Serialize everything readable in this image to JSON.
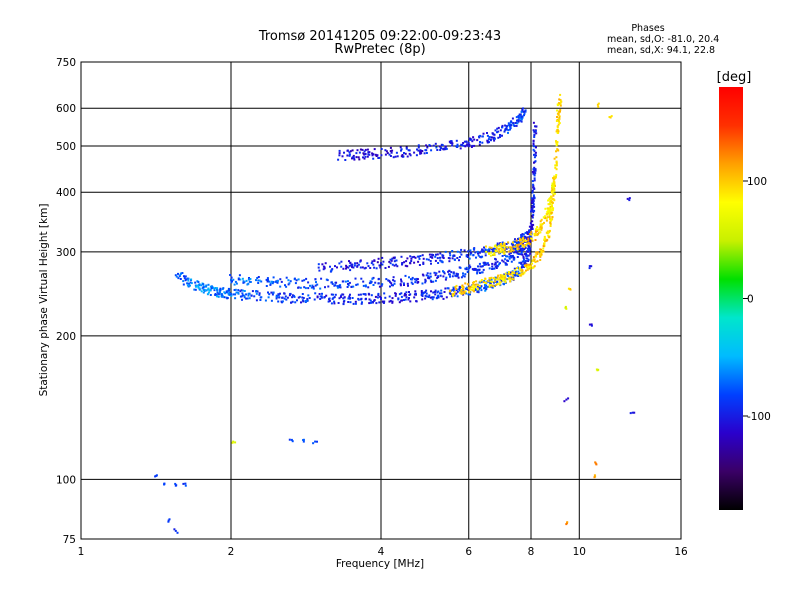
{
  "chart_data": {
    "type": "scatter",
    "title": "Tromsø 20141205 09:22:00-09:23:43",
    "subtitle": "RwPretec (8p)",
    "xlabel": "Frequency [MHz]",
    "ylabel": "Stationary phase Virtual Height [km]",
    "x_scale": "log",
    "y_scale": "log",
    "xlim": [
      1,
      16
    ],
    "ylim": [
      75,
      750
    ],
    "x_ticks": [
      1,
      2,
      4,
      6,
      8,
      10,
      16
    ],
    "y_ticks": [
      75,
      100,
      200,
      300,
      400,
      500,
      600,
      750
    ],
    "grid": true,
    "stats": {
      "header": "Phases",
      "line_o": "mean, sd,O: -81.0, 20.4",
      "line_x": "mean, sd,X:  94.1, 22.8"
    },
    "colorbar": {
      "label": "[deg]",
      "range": [
        -180,
        180
      ],
      "ticks": [
        100,
        0,
        -100
      ],
      "colors": [
        "#000000",
        "#3a0066",
        "#2a00cc",
        "#0040ff",
        "#00bbff",
        "#00e6cc",
        "#00e000",
        "#c8f000",
        "#ffff00",
        "#ffa000",
        "#ff3000",
        "#ff0000"
      ]
    },
    "series": [
      {
        "description": "lower trace",
        "points": [
          [
            1.55,
            268,
            -80
          ],
          [
            1.7,
            255,
            -70
          ],
          [
            1.8,
            250,
            -60
          ],
          [
            1.9,
            247,
            -70
          ],
          [
            2.0,
            245,
            -75
          ],
          [
            2.2,
            243,
            -80
          ],
          [
            2.5,
            241,
            -85
          ],
          [
            2.8,
            240,
            -90
          ],
          [
            3.2,
            239,
            -95
          ],
          [
            3.6,
            239,
            -95
          ],
          [
            4.0,
            240,
            -100
          ],
          [
            4.5,
            241,
            -100
          ],
          [
            5.0,
            243,
            -95
          ],
          [
            5.5,
            246,
            -90
          ],
          [
            6.0,
            250,
            -85
          ],
          [
            6.5,
            255,
            -80
          ],
          [
            7.0,
            262,
            -80
          ],
          [
            7.4,
            270,
            -85
          ],
          [
            7.7,
            280,
            -90
          ],
          [
            7.9,
            300,
            -95
          ],
          [
            8.0,
            330,
            -100
          ],
          [
            8.08,
            380,
            -100
          ],
          [
            8.12,
            450,
            -100
          ],
          [
            8.15,
            550,
            -100
          ]
        ]
      },
      {
        "description": "middle trace",
        "points": [
          [
            2.0,
            262,
            -70
          ],
          [
            2.3,
            260,
            -75
          ],
          [
            2.7,
            258,
            -80
          ],
          [
            3.2,
            257,
            -85
          ],
          [
            3.8,
            258,
            -90
          ],
          [
            4.4,
            260,
            -95
          ],
          [
            5.0,
            264,
            -95
          ],
          [
            5.6,
            270,
            -95
          ],
          [
            6.2,
            276,
            -90
          ],
          [
            6.8,
            283,
            -90
          ],
          [
            7.3,
            292,
            -90
          ],
          [
            7.7,
            305,
            -100
          ],
          [
            7.95,
            330,
            -100
          ]
        ]
      },
      {
        "description": "upper trace",
        "points": [
          [
            3.0,
            278,
            -95
          ],
          [
            3.5,
            282,
            -100
          ],
          [
            4.0,
            284,
            -105
          ],
          [
            4.6,
            287,
            -100
          ],
          [
            5.2,
            291,
            -95
          ],
          [
            5.8,
            296,
            -90
          ],
          [
            6.4,
            300,
            -90
          ],
          [
            7.0,
            306,
            -90
          ],
          [
            7.5,
            313,
            -90
          ],
          [
            7.8,
            322,
            -90
          ]
        ]
      },
      {
        "description": "upper echo trace",
        "points": [
          [
            3.3,
            478,
            -100
          ],
          [
            3.7,
            480,
            -110
          ],
          [
            4.2,
            484,
            -105
          ],
          [
            4.8,
            490,
            -100
          ],
          [
            5.4,
            498,
            -100
          ],
          [
            6.0,
            508,
            -100
          ],
          [
            6.6,
            522,
            -95
          ],
          [
            7.1,
            540,
            -90
          ],
          [
            7.5,
            565,
            -85
          ],
          [
            7.8,
            590,
            -80
          ]
        ]
      },
      {
        "description": "X mode trace",
        "points": [
          [
            5.5,
            248,
            100
          ],
          [
            6.0,
            252,
            100
          ],
          [
            6.5,
            258,
            95
          ],
          [
            7.0,
            263,
            90
          ],
          [
            7.5,
            270,
            95
          ],
          [
            8.0,
            280,
            100
          ],
          [
            8.4,
            300,
            100
          ],
          [
            8.7,
            330,
            95
          ],
          [
            8.85,
            380,
            90
          ],
          [
            8.95,
            450,
            90
          ],
          [
            9.05,
            550,
            95
          ],
          [
            9.15,
            640,
            90
          ]
        ]
      },
      {
        "description": "X mode trace 2",
        "points": [
          [
            6.5,
            300,
            80
          ],
          [
            7.0,
            304,
            90
          ],
          [
            7.5,
            310,
            100
          ],
          [
            8.0,
            320,
            100
          ],
          [
            8.4,
            340,
            95
          ],
          [
            8.7,
            370,
            90
          ],
          [
            8.9,
            420,
            90
          ]
        ]
      },
      {
        "description": "scattered echoes",
        "points": [
          [
            2.02,
            120,
            60
          ],
          [
            2.65,
            121,
            -80
          ],
          [
            2.8,
            120,
            -80
          ],
          [
            2.95,
            120,
            -80
          ],
          [
            1.42,
            102,
            -80
          ],
          [
            1.47,
            98,
            -90
          ],
          [
            1.55,
            97,
            -80
          ],
          [
            1.62,
            98,
            -85
          ],
          [
            1.5,
            82,
            -90
          ],
          [
            1.55,
            78,
            -90
          ],
          [
            1.32,
            75,
            -80
          ],
          [
            9.42,
            147,
            -110
          ],
          [
            9.45,
            81,
            120
          ],
          [
            10.85,
            170,
            60
          ],
          [
            10.8,
            108,
            120
          ],
          [
            10.75,
            102,
            110
          ],
          [
            10.6,
            210,
            -100
          ],
          [
            10.5,
            280,
            -100
          ],
          [
            12.8,
            138,
            -100
          ],
          [
            12.6,
            385,
            -100
          ],
          [
            11.5,
            575,
            90
          ],
          [
            10.9,
            610,
            100
          ],
          [
            9.4,
            230,
            60
          ],
          [
            9.6,
            250,
            100
          ]
        ]
      }
    ]
  }
}
